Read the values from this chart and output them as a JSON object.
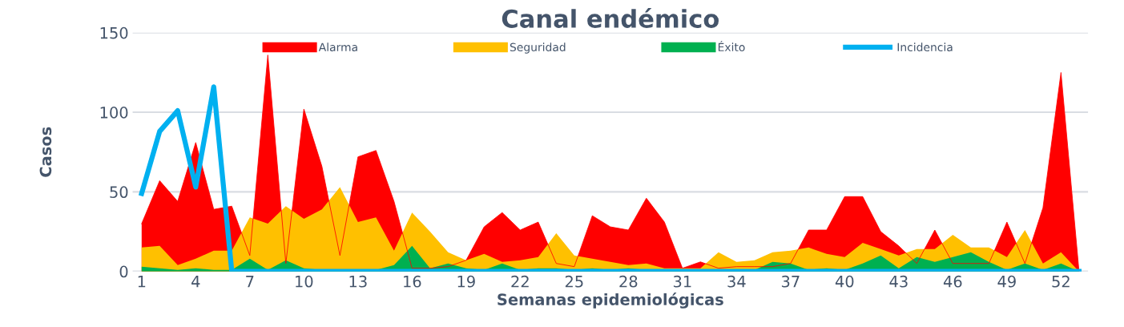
{
  "chart_data": {
    "type": "area",
    "title": "Canal endémico",
    "xlabel": "Semanas epidemiológicas",
    "ylabel": "Casos",
    "x": [
      1,
      2,
      3,
      4,
      5,
      6,
      7,
      8,
      9,
      10,
      11,
      12,
      13,
      14,
      15,
      16,
      17,
      18,
      19,
      20,
      21,
      22,
      23,
      24,
      25,
      26,
      27,
      28,
      29,
      30,
      31,
      32,
      33,
      34,
      35,
      36,
      37,
      38,
      39,
      40,
      41,
      42,
      43,
      44,
      45,
      46,
      47,
      48,
      49,
      50,
      51,
      52,
      53
    ],
    "series": [
      {
        "name": "Alarma",
        "color": "#ff0000",
        "values": [
          30,
          57,
          44,
          81,
          39,
          41,
          10,
          136,
          5,
          102,
          66,
          10,
          72,
          76,
          44,
          2,
          2,
          3,
          7,
          28,
          37,
          26,
          31,
          5,
          3,
          35,
          28,
          26,
          46,
          31,
          2,
          6,
          2,
          3,
          3,
          3,
          5,
          26,
          26,
          47,
          47,
          25,
          16,
          5,
          26,
          5,
          5,
          5,
          31,
          5,
          40,
          125,
          0
        ]
      },
      {
        "name": "Seguridad",
        "color": "#ffc000",
        "values": [
          15,
          16,
          4,
          8,
          13,
          13,
          34,
          30,
          41,
          33,
          39,
          53,
          31,
          34,
          13,
          37,
          25,
          12,
          7,
          11,
          6,
          7,
          9,
          24,
          10,
          8,
          6,
          4,
          5,
          2,
          2,
          2,
          12,
          6,
          7,
          12,
          13,
          15,
          11,
          9,
          18,
          14,
          10,
          14,
          14,
          23,
          15,
          15,
          9,
          26,
          5,
          12,
          0
        ]
      },
      {
        "name": "Éxito",
        "color": "#00b050",
        "values": [
          3,
          2,
          1,
          2,
          1,
          1,
          8,
          1,
          7,
          2,
          1,
          1,
          1,
          1,
          4,
          16,
          2,
          5,
          2,
          1,
          5,
          1,
          2,
          2,
          1,
          2,
          1,
          2,
          1,
          1,
          1,
          1,
          1,
          1,
          1,
          6,
          5,
          1,
          2,
          1,
          5,
          10,
          2,
          9,
          6,
          9,
          12,
          6,
          1,
          5,
          1,
          5,
          0
        ]
      },
      {
        "name": "Incidencia",
        "type": "line",
        "color": "#00b0f0",
        "values": [
          49,
          88,
          101,
          53,
          116,
          0,
          0,
          0,
          0,
          0,
          0,
          0,
          0,
          0,
          0,
          0,
          0,
          0,
          0,
          0,
          0,
          0,
          0,
          0,
          0,
          0,
          0,
          0,
          0,
          0,
          0,
          0,
          0,
          0,
          0,
          0,
          0,
          0,
          0,
          0,
          0,
          0,
          0,
          0,
          0,
          0,
          0,
          0,
          0,
          0,
          0,
          0,
          0
        ]
      }
    ],
    "xlim": [
      0.5,
      53.5
    ],
    "xticks": [
      1,
      4,
      7,
      10,
      13,
      16,
      19,
      22,
      25,
      28,
      31,
      34,
      37,
      40,
      43,
      46,
      49,
      52
    ],
    "ylim": [
      0,
      150
    ],
    "yticks": [
      0,
      50,
      100,
      150
    ],
    "grid": "y",
    "legend": "top"
  }
}
